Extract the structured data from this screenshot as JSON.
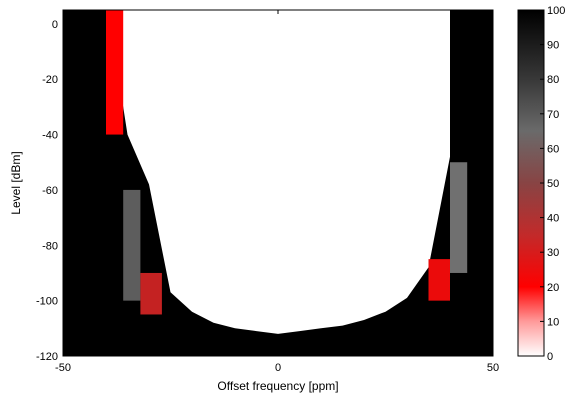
{
  "chart_data": {
    "type": "heatmap",
    "title": "",
    "xlabel": "Offset frequency [ppm]",
    "ylabel": "Level [dBm]",
    "xlim": [
      -50,
      50
    ],
    "ylim": [
      -120,
      5
    ],
    "x_ticks": [
      -50,
      0,
      50
    ],
    "x_tick_labels": [
      "-50",
      "0",
      "50"
    ],
    "y_ticks": [
      0,
      -20,
      -40,
      -60,
      -80,
      -100,
      -120
    ],
    "y_tick_labels": [
      "0",
      "-20",
      "-40",
      "-60",
      "-80",
      "-100",
      "-120"
    ],
    "grid": false,
    "colorbar": {
      "range": [
        0,
        100
      ],
      "ticks": [
        0,
        10,
        20,
        30,
        40,
        50,
        60,
        70,
        80,
        90,
        100
      ],
      "tick_labels": [
        "0",
        "10",
        "20",
        "30",
        "40",
        "50",
        "60",
        "70",
        "80",
        "90",
        "100"
      ],
      "colormap": "white-red-gray-black",
      "color_stops": [
        {
          "value": 0,
          "color": "#ffffff"
        },
        {
          "value": 20,
          "color": "#ff0000"
        },
        {
          "value": 50,
          "color": "#884444"
        },
        {
          "value": 70,
          "color": "#707070"
        },
        {
          "value": 100,
          "color": "#000000"
        }
      ]
    },
    "description_note": "",
    "boundary": {
      "offset_ppm": [
        -50,
        -40,
        -35,
        -30,
        -25,
        -20,
        -15,
        -10,
        -5,
        0,
        5,
        10,
        15,
        20,
        25,
        30,
        35,
        40,
        45,
        50
      ],
      "level_dbm": [
        10,
        10,
        -40,
        -58,
        -97,
        -104,
        -108,
        -110,
        -111,
        -112,
        -111,
        -110,
        -109,
        -107,
        -104,
        -99,
        -88,
        -48,
        10,
        10
      ]
    },
    "regions": [
      {
        "x": [
          -50,
          -40
        ],
        "y": [
          -120,
          5
        ],
        "value": 100
      },
      {
        "x": [
          40,
          50
        ],
        "y": [
          -120,
          5
        ],
        "value": 100
      },
      {
        "x": [
          -40,
          -36
        ],
        "y": [
          -40,
          5
        ],
        "value": 20
      },
      {
        "x": [
          -36,
          -32
        ],
        "y": [
          -100,
          -60
        ],
        "value": 75
      },
      {
        "x": [
          -32,
          -27
        ],
        "y": [
          -105,
          -90
        ],
        "value": 35
      },
      {
        "x": [
          35,
          40
        ],
        "y": [
          -100,
          -85
        ],
        "value": 25
      },
      {
        "x": [
          40,
          44
        ],
        "y": [
          -90,
          -50
        ],
        "value": 70
      }
    ]
  }
}
